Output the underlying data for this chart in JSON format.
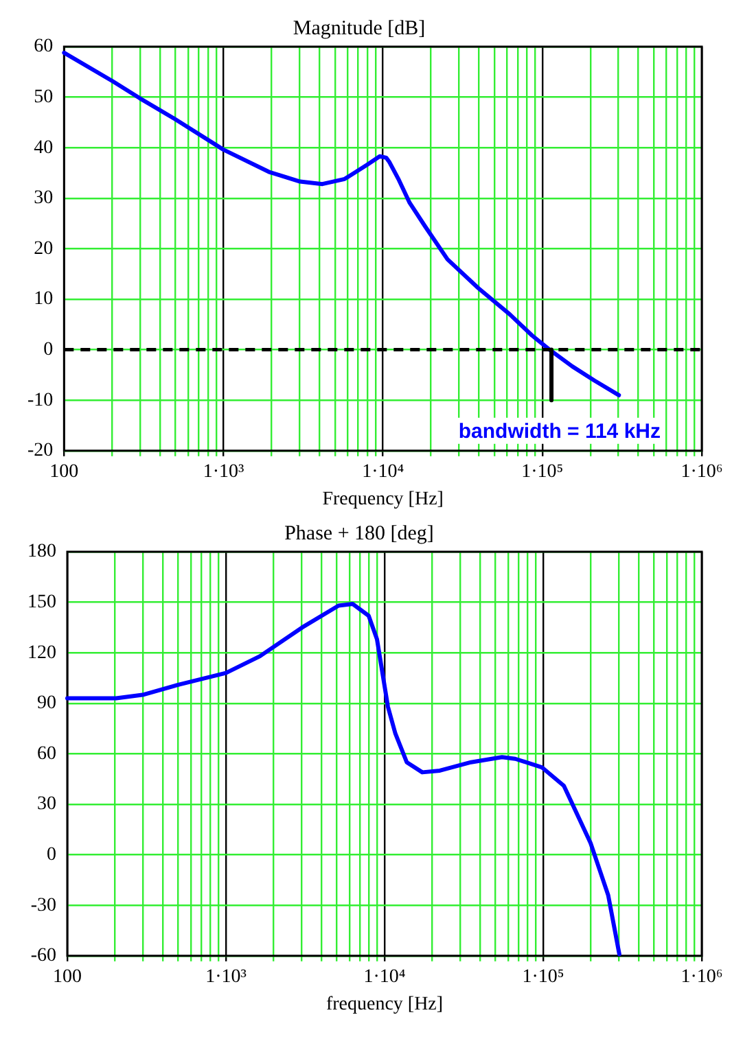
{
  "chart_data": [
    {
      "type": "line",
      "title": "Magnitude [dB]",
      "xlabel": "Frequency [Hz]",
      "log": "x",
      "grid": true,
      "marker": "none",
      "xlim": [
        100,
        1000000
      ],
      "ylim": [
        -20,
        60
      ],
      "yticks": [
        -20,
        -10,
        0,
        10,
        20,
        30,
        40,
        50,
        60
      ],
      "xticks": [
        100,
        {
          "value": 200,
          "label": null
        },
        {
          "value": 300,
          "label": null
        },
        {
          "value": 400,
          "label": null
        },
        {
          "value": 500,
          "label": null
        },
        {
          "value": 600,
          "label": null
        },
        {
          "value": 700,
          "label": null
        },
        {
          "value": 800,
          "label": null
        },
        {
          "value": 900,
          "label": null
        },
        {
          "value": 1000,
          "label": "1·10³"
        },
        {
          "value": 2000,
          "label": null
        },
        {
          "value": 3000,
          "label": null
        },
        {
          "value": 4000,
          "label": null
        },
        {
          "value": 5000,
          "label": null
        },
        {
          "value": 6000,
          "label": null
        },
        {
          "value": 7000,
          "label": null
        },
        {
          "value": 8000,
          "label": null
        },
        {
          "value": 9000,
          "label": null
        },
        {
          "value": 10000,
          "label": "1·10⁴"
        },
        {
          "value": 20000,
          "label": null
        },
        {
          "value": 30000,
          "label": null
        },
        {
          "value": 40000,
          "label": null
        },
        {
          "value": 50000,
          "label": null
        },
        {
          "value": 60000,
          "label": null
        },
        {
          "value": 70000,
          "label": null
        },
        {
          "value": 80000,
          "label": null
        },
        {
          "value": 90000,
          "label": null
        },
        {
          "value": 100000,
          "label": "1·10⁵"
        },
        {
          "value": 200000,
          "label": null
        },
        {
          "value": 300000,
          "label": null
        },
        {
          "value": 400000,
          "label": null
        },
        {
          "value": 500000,
          "label": null
        },
        {
          "value": 600000,
          "label": null
        },
        {
          "value": 700000,
          "label": null
        },
        {
          "value": 800000,
          "label": null
        },
        {
          "value": 900000,
          "label": null
        },
        {
          "value": 1000000,
          "label": "1·10⁶"
        }
      ],
      "annotations": [
        "bandwidth = 114 kHz"
      ],
      "ref_lines": [
        {
          "axis": "y",
          "value": 0,
          "color": "#000000",
          "line_style": "dashed"
        }
      ],
      "series": [
        {
          "color": "#0000ff",
          "line_style": "solid",
          "x": [
            100,
            203,
            298,
            500,
            1000,
            1930,
            3020,
            4170,
            5750,
            7940,
            9550,
            10500,
            11000,
            12500,
            14700,
            18400,
            25400,
            39600,
            62500,
            86300,
            111000,
            154000,
            212000,
            302000
          ],
          "values": [
            58.8,
            53.1,
            49.8,
            45.6,
            39.6,
            35.2,
            33.3,
            32.8,
            33.8,
            36.6,
            38.3,
            38.0,
            37.1,
            33.8,
            29.1,
            24.4,
            17.9,
            12.2,
            7.0,
            2.8,
            0,
            -3.3,
            -6.1,
            -9.0
          ]
        },
        {
          "color": "#000000",
          "line_style": "solid",
          "x": [
            114000,
            114000
          ],
          "values": [
            0,
            -10
          ]
        }
      ]
    },
    {
      "type": "line",
      "title": "Phase + 180 [deg]",
      "xlabel": "frequency [Hz]",
      "log": "x",
      "grid": true,
      "marker": "none",
      "xlim": [
        100,
        1000000
      ],
      "ylim": [
        -60,
        180
      ],
      "yticks": [
        -60,
        -30,
        0,
        30,
        60,
        90,
        120,
        150,
        180
      ],
      "xticks": [
        100,
        {
          "value": 200,
          "label": null
        },
        {
          "value": 300,
          "label": null
        },
        {
          "value": 400,
          "label": null
        },
        {
          "value": 500,
          "label": null
        },
        {
          "value": 600,
          "label": null
        },
        {
          "value": 700,
          "label": null
        },
        {
          "value": 800,
          "label": null
        },
        {
          "value": 900,
          "label": null
        },
        {
          "value": 1000,
          "label": "1·10³"
        },
        {
          "value": 2000,
          "label": null
        },
        {
          "value": 3000,
          "label": null
        },
        {
          "value": 4000,
          "label": null
        },
        {
          "value": 5000,
          "label": null
        },
        {
          "value": 6000,
          "label": null
        },
        {
          "value": 7000,
          "label": null
        },
        {
          "value": 8000,
          "label": null
        },
        {
          "value": 9000,
          "label": null
        },
        {
          "value": 10000,
          "label": "1·10⁴"
        },
        {
          "value": 20000,
          "label": null
        },
        {
          "value": 30000,
          "label": null
        },
        {
          "value": 40000,
          "label": null
        },
        {
          "value": 50000,
          "label": null
        },
        {
          "value": 60000,
          "label": null
        },
        {
          "value": 70000,
          "label": null
        },
        {
          "value": 80000,
          "label": null
        },
        {
          "value": 90000,
          "label": null
        },
        {
          "value": 100000,
          "label": "1·10⁵"
        },
        {
          "value": 200000,
          "label": null
        },
        {
          "value": 300000,
          "label": null
        },
        {
          "value": 400000,
          "label": null
        },
        {
          "value": 500000,
          "label": null
        },
        {
          "value": 600000,
          "label": null
        },
        {
          "value": 700000,
          "label": null
        },
        {
          "value": 800000,
          "label": null
        },
        {
          "value": 900000,
          "label": null
        },
        {
          "value": 1000000,
          "label": "1·10⁶"
        }
      ],
      "series": [
        {
          "color": "#0000ff",
          "line_style": "solid",
          "x": [
            100,
            203,
            298,
            500,
            1000,
            1640,
            3020,
            5130,
            6300,
            7940,
            8960,
            10500,
            11700,
            13800,
            17300,
            22300,
            35100,
            55000,
            66700,
            98000,
            135000,
            199000,
            257000,
            302000
          ],
          "values": [
            93,
            93,
            95,
            101,
            108,
            118,
            135,
            148,
            149,
            142,
            128,
            88,
            72,
            55,
            49,
            50,
            55,
            58,
            57,
            52,
            41,
            7,
            -24,
            -59
          ]
        }
      ]
    }
  ]
}
